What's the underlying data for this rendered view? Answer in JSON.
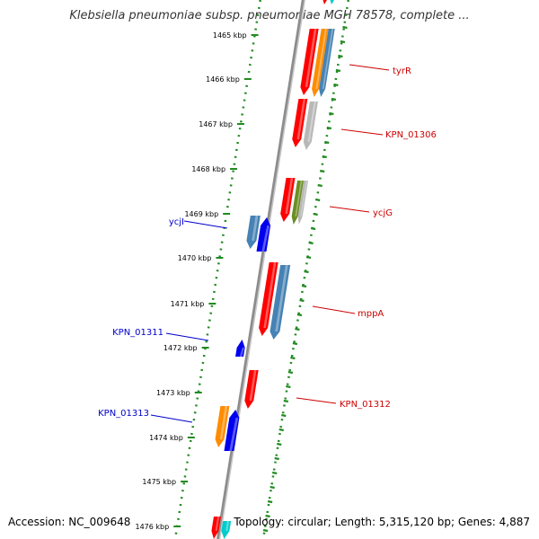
{
  "title": "Klebsiella pneumoniae subsp. pneumoniae MGH 78578, complete ...",
  "footer": {
    "accession": "Accession: NC_009648",
    "summary": "Topology: circular; Length: 5,315,120 bp; Genes: 4,887"
  },
  "ticks": [
    "1465 kbp",
    "1466 kbp",
    "1467 kbp",
    "1468 kbp",
    "1469 kbp",
    "1470 kbp",
    "1471 kbp",
    "1472 kbp",
    "1473 kbp",
    "1474 kbp",
    "1475 kbp",
    "1476 kbp"
  ],
  "colors": {
    "red": "#ff0000",
    "blue": "#0000ee",
    "steelblue": "#4682b4",
    "orange": "#ff8c00",
    "gray": "#b8b8b8",
    "olive": "#6b8e23",
    "cyan": "#00cccc",
    "green": "#228b22",
    "label_red": "#cc0000",
    "label_blue": "#0000cc"
  },
  "labels": [
    {
      "text": "tyrR",
      "color": "#cc0000"
    },
    {
      "text": "KPN_01306",
      "color": "#cc0000"
    },
    {
      "text": "ycjG",
      "color": "#cc0000"
    },
    {
      "text": "mppA",
      "color": "#cc0000"
    },
    {
      "text": "KPN_01312",
      "color": "#cc0000"
    },
    {
      "text": "ycjI",
      "color": "#0000cc"
    },
    {
      "text": "KPN_01311",
      "color": "#0000cc"
    },
    {
      "text": "KPN_01313",
      "color": "#0000cc"
    }
  ]
}
